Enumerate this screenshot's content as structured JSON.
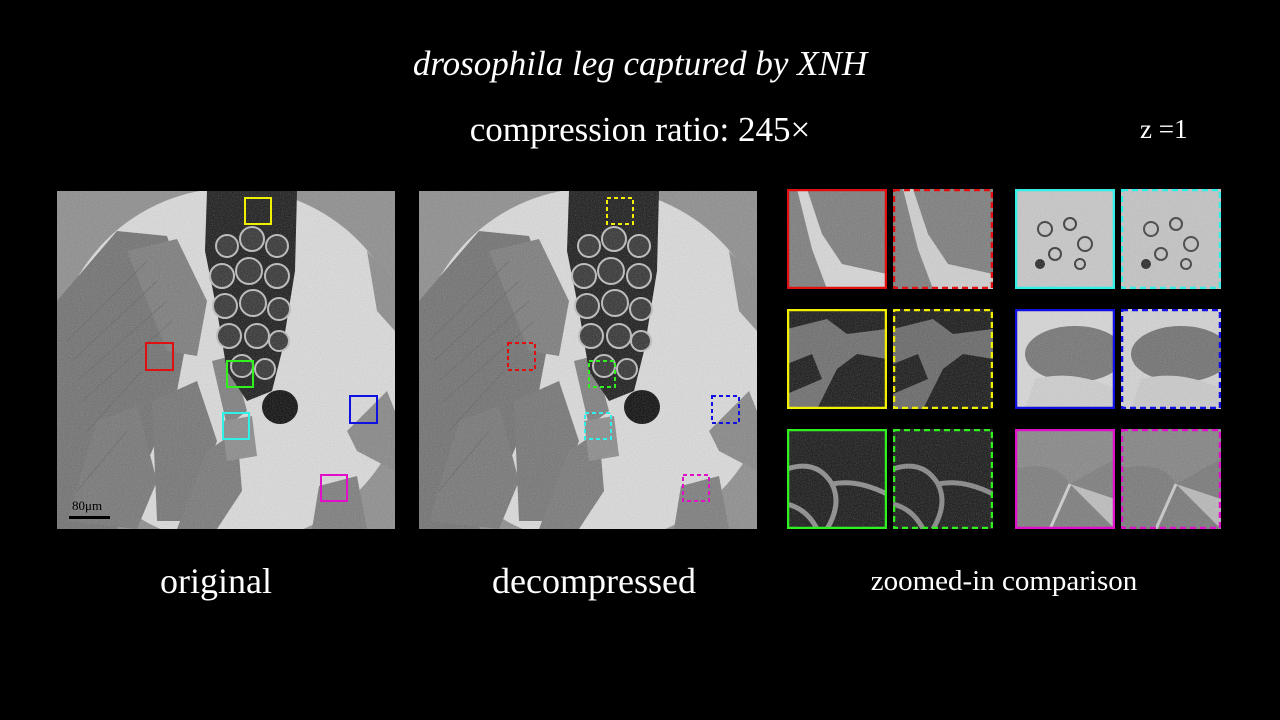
{
  "title": "drosophila leg captured by XNH",
  "subtitle": "compression ratio: 245×",
  "z_label": "z =1",
  "panels": {
    "original_caption": "original",
    "decompressed_caption": "decompressed",
    "zoom_caption": "zoomed-in comparison"
  },
  "scale_bar": {
    "label": "80μm"
  },
  "roi_colors": {
    "red": "#e01010",
    "yellow": "#f0f000",
    "green": "#30f020",
    "cyan": "#30f0e8",
    "blue": "#1010e0",
    "magenta": "#e010c8"
  }
}
